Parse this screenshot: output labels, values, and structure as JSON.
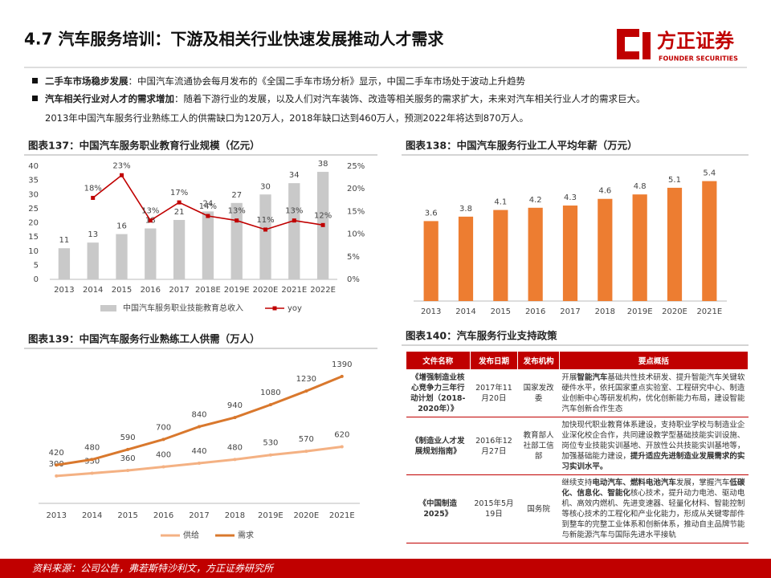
{
  "header": {
    "title": "4.7 汽车服务培训：下游及相关行业快速发展推动人才需求",
    "logo": "方正证券",
    "logo_en": "FOUNDER SECURITIES"
  },
  "bullets": [
    {
      "label": "二手车市场稳步发展",
      "text": "：中国汽车流通协会每月发布的《全国二手车市场分析》显示，中国二手车市场处于波动上升趋势"
    },
    {
      "label": "汽车相关行业对人才的需求增加",
      "text": "：随着下游行业的发展，以及人们对汽车装饰、改造等相关服务的需求扩大，未来对汽车相关行业人才的需求巨大。"
    }
  ],
  "note": "2013年中国汽车服务行业熟练工人的供需缺口为120万人，2018年缺口达到460万人，预测2022年将达到870万人。",
  "chart_data": [
    {
      "type": "bar",
      "title": "图表137：中国汽车服务职业教育行业规模（亿元）",
      "categories": [
        "2013",
        "2014",
        "2015",
        "2016",
        "2017",
        "2018E",
        "2019E",
        "2020E",
        "2021E",
        "2022E"
      ],
      "series": [
        {
          "name": "中国汽车服务职业技能教育总收入",
          "color": "#c9c9c9",
          "values": [
            11,
            13,
            16,
            18,
            21,
            24,
            27,
            30,
            34,
            38
          ]
        },
        {
          "name": "yoy",
          "type": "line",
          "axis": "y2",
          "color": "#c00000",
          "values": [
            null,
            18,
            23,
            13,
            17,
            14,
            13,
            11,
            13,
            12
          ],
          "value_labels": [
            null,
            "18%",
            "23%",
            "13%",
            "17%",
            "14%",
            "13%",
            "11%",
            "13%",
            "12%"
          ]
        }
      ],
      "ylim": [
        0,
        40
      ],
      "yticks": [
        0,
        5,
        10,
        15,
        20,
        25,
        30,
        35,
        40
      ],
      "y2lim": [
        0,
        25
      ],
      "y2ticks": [
        {
          "value": 0,
          "label": "0%"
        },
        {
          "value": 5,
          "label": "5%"
        },
        {
          "value": 10,
          "label": "10%"
        },
        {
          "value": 15,
          "label": "15%"
        },
        {
          "value": 20,
          "label": "20%"
        },
        {
          "value": 25,
          "label": "25%"
        }
      ]
    },
    {
      "type": "bar",
      "title": "图表138：中国汽车服务行业工人平均年薪（万元）",
      "categories": [
        "2013",
        "2014",
        "2015",
        "2016",
        "2017",
        "2018",
        "2019E",
        "2020E",
        "2021E"
      ],
      "color": "#ed7d31",
      "values": [
        3.6,
        3.8,
        4.1,
        4.2,
        4.3,
        4.6,
        4.8,
        5.1,
        5.4
      ],
      "ylim": [
        0,
        6
      ]
    },
    {
      "type": "line",
      "title": "图表139：中国汽车服务行业熟练工人供需（万人）",
      "categories": [
        "2013",
        "2014",
        "2015",
        "2016",
        "2017",
        "2018",
        "2019E",
        "2020E",
        "2021E"
      ],
      "series": [
        {
          "name": "供给",
          "color": "#f4b183",
          "values": [
            300,
            330,
            360,
            400,
            440,
            480,
            530,
            570,
            620
          ]
        },
        {
          "name": "需求",
          "color": "#d9782d",
          "values": [
            420,
            480,
            590,
            700,
            840,
            940,
            1080,
            1230,
            1390
          ]
        }
      ],
      "ylim": [
        0,
        1600
      ]
    }
  ],
  "table": {
    "title": "图表140：汽车服务行业支持政策",
    "columns": [
      "文件名称",
      "发布日期",
      "发布机构",
      "要点概括"
    ],
    "rows": [
      {
        "name": "《增强制造业核心竞争力三年行动计划（2018-2020年）》",
        "date": "2017年11月20日",
        "org": "国家发改委",
        "summary": [
          {
            "text": "开展",
            "bold": false
          },
          {
            "text": "智能汽车",
            "bold": true
          },
          {
            "text": "基础共性技术研发、提升智能汽车关键软硬件水平，依托国家重点实验室、工程研究中心、制造业创新中心等研发机构，优化创新能力布局，建设智能汽车创新合作生态",
            "bold": false
          }
        ]
      },
      {
        "name": "《制造业人才发展规划指南》",
        "date": "2016年12月27日",
        "org": "教育部人社部工信部",
        "summary": [
          {
            "text": "加快现代职业教育体系建设，支持职业学校与制造业企业深化校企合作，共同建设教学型基础技能实训设施、岗位专业技能实训基地、开放性公共技能实训基地等，加强基础能力建设，",
            "bold": false
          },
          {
            "text": "提升适应先进制造业发展需求的实习实训水平。",
            "bold": true
          }
        ]
      },
      {
        "name": "《中国制造2025》",
        "date": "2015年5月19日",
        "org": "国务院",
        "summary": [
          {
            "text": "继续支持",
            "bold": false
          },
          {
            "text": "电动汽车、燃料电池汽车",
            "bold": true
          },
          {
            "text": "发展，掌握汽车",
            "bold": false
          },
          {
            "text": "低碳化、信息化、智能化",
            "bold": true
          },
          {
            "text": "核心技术，提升动力电池、驱动电机、高效内燃机、先进变速器、轻量化材料、智能控制等核心技术的工程化和产业化能力，形成从关键零部件到整车的完整工业体系和创新体系，推动自主品牌节能与新能源汽车与国际先进水平接轨",
            "bold": false
          }
        ]
      }
    ]
  },
  "source": "资料来源：公司公告，弗若斯特沙利文，方正证券研究所"
}
